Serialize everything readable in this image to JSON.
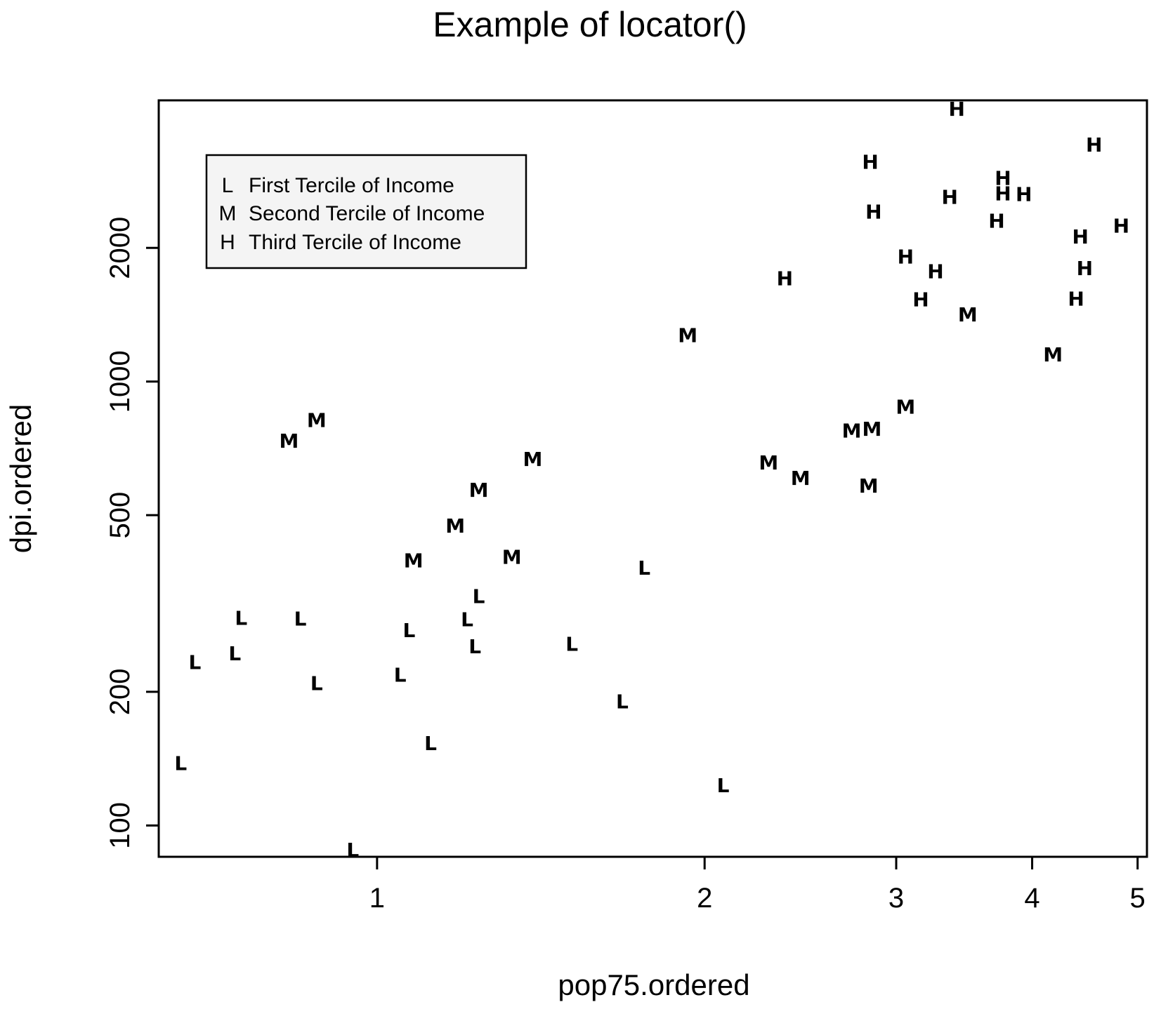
{
  "chart_data": {
    "type": "scatter",
    "title": "Example of locator()",
    "xlabel": "pop75.ordered",
    "ylabel": "dpi.ordered",
    "log_x": true,
    "log_y": true,
    "xlim": [
      0.63,
      5.1
    ],
    "ylim": [
      85,
      4300
    ],
    "x_ticks": [
      1,
      2,
      3,
      4,
      5
    ],
    "y_ticks": [
      100,
      200,
      500,
      1000,
      2000
    ],
    "grid": false,
    "legend": {
      "placement": "top-left",
      "entries": [
        {
          "symbol": "L",
          "label": "First Tercile of Income"
        },
        {
          "symbol": "M",
          "label": "Second Tercile of Income"
        },
        {
          "symbol": "H",
          "label": "Third Tercile of Income"
        }
      ]
    },
    "series": [
      {
        "symbol": "L",
        "points": [
          {
            "x": 0.66,
            "y": 138
          },
          {
            "x": 0.68,
            "y": 233
          },
          {
            "x": 0.74,
            "y": 244
          },
          {
            "x": 0.75,
            "y": 293
          },
          {
            "x": 0.85,
            "y": 292
          },
          {
            "x": 0.88,
            "y": 209
          },
          {
            "x": 0.95,
            "y": 88
          },
          {
            "x": 1.05,
            "y": 218
          },
          {
            "x": 1.07,
            "y": 275
          },
          {
            "x": 1.12,
            "y": 153
          },
          {
            "x": 1.21,
            "y": 291
          },
          {
            "x": 1.24,
            "y": 328
          },
          {
            "x": 1.23,
            "y": 253
          },
          {
            "x": 1.51,
            "y": 256
          },
          {
            "x": 1.68,
            "y": 190
          },
          {
            "x": 1.76,
            "y": 380
          },
          {
            "x": 2.08,
            "y": 123
          }
        ]
      },
      {
        "symbol": "M",
        "points": [
          {
            "x": 0.83,
            "y": 735
          },
          {
            "x": 0.88,
            "y": 818
          },
          {
            "x": 1.08,
            "y": 395
          },
          {
            "x": 1.18,
            "y": 473
          },
          {
            "x": 1.24,
            "y": 569
          },
          {
            "x": 1.33,
            "y": 402
          },
          {
            "x": 1.39,
            "y": 668
          },
          {
            "x": 1.93,
            "y": 1270
          },
          {
            "x": 2.29,
            "y": 656
          },
          {
            "x": 2.45,
            "y": 606
          },
          {
            "x": 2.73,
            "y": 774
          },
          {
            "x": 2.85,
            "y": 781
          },
          {
            "x": 2.83,
            "y": 582
          },
          {
            "x": 3.06,
            "y": 877
          },
          {
            "x": 3.49,
            "y": 1415
          },
          {
            "x": 4.18,
            "y": 1150
          }
        ]
      },
      {
        "symbol": "H",
        "points": [
          {
            "x": 2.37,
            "y": 1705
          },
          {
            "x": 2.84,
            "y": 3120
          },
          {
            "x": 2.86,
            "y": 2410
          },
          {
            "x": 3.06,
            "y": 1910
          },
          {
            "x": 3.16,
            "y": 1530
          },
          {
            "x": 3.26,
            "y": 1770
          },
          {
            "x": 3.36,
            "y": 2600
          },
          {
            "x": 3.41,
            "y": 4110
          },
          {
            "x": 3.71,
            "y": 2300
          },
          {
            "x": 3.76,
            "y": 2870
          },
          {
            "x": 3.76,
            "y": 2650
          },
          {
            "x": 3.93,
            "y": 2640
          },
          {
            "x": 4.39,
            "y": 1535
          },
          {
            "x": 4.43,
            "y": 2120
          },
          {
            "x": 4.47,
            "y": 1800
          },
          {
            "x": 4.56,
            "y": 3410
          },
          {
            "x": 4.83,
            "y": 2240
          }
        ]
      }
    ]
  }
}
